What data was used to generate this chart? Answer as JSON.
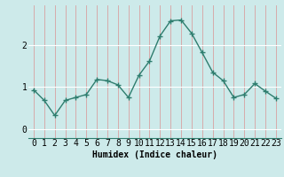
{
  "x": [
    0,
    1,
    2,
    3,
    4,
    5,
    6,
    7,
    8,
    9,
    10,
    11,
    12,
    13,
    14,
    15,
    16,
    17,
    18,
    19,
    20,
    21,
    22,
    23
  ],
  "y": [
    0.93,
    0.68,
    0.32,
    0.68,
    0.75,
    0.82,
    1.18,
    1.15,
    1.05,
    0.75,
    1.28,
    1.62,
    2.22,
    2.58,
    2.6,
    2.28,
    1.82,
    1.35,
    1.15,
    0.75,
    0.82,
    1.08,
    0.9,
    0.73
  ],
  "line_color": "#2e7d6e",
  "marker": "+",
  "marker_size": 4,
  "background_color": "#cdeaea",
  "hgrid_color": "#ffffff",
  "xlabel": "Humidex (Indice chaleur)",
  "yticks": [
    0,
    1,
    2
  ],
  "xlim": [
    -0.5,
    23.5
  ],
  "ylim": [
    -0.22,
    2.95
  ],
  "xlabel_fontsize": 7,
  "tick_fontsize": 7,
  "line_width": 1.0,
  "vgrid_color": "#d8a0a0"
}
